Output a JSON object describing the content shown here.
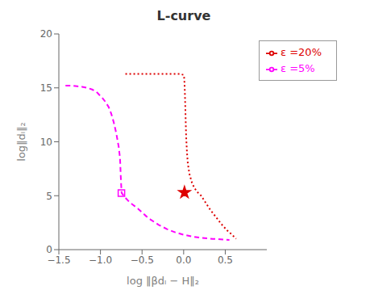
{
  "chart_data": {
    "type": "line",
    "title": "L-curve",
    "x_label": "log ‖βdₗ − H‖₂",
    "y_label": "log‖dₗ‖₂",
    "xlim": [
      -1.5,
      1.0
    ],
    "ylim": [
      0,
      20
    ],
    "xticks": [
      {
        "value": -1.5,
        "label": "−1.5"
      },
      {
        "value": -1.0,
        "label": "−1.0"
      },
      {
        "value": -0.5,
        "label": "−0.5"
      },
      {
        "value": 0.0,
        "label": "0.0"
      },
      0.5
    ],
    "yticks": [
      0,
      5,
      10,
      15,
      20
    ],
    "grid": false,
    "legend": "upper right",
    "series": [
      {
        "name": "ε =5%",
        "color": "#ff00ff",
        "line_style": "dashed",
        "marker": "open_square",
        "x": [
          -1.42,
          -1.38,
          -1.33,
          -1.28,
          -1.22,
          -1.16,
          -1.1,
          -1.05,
          -1.02,
          -0.98,
          -0.94,
          -0.9,
          -0.87,
          -0.84,
          -0.81,
          -0.78,
          -0.765,
          -0.762,
          -0.76,
          -0.758,
          -0.756,
          -0.754,
          -0.752,
          -0.75,
          -0.749,
          -0.748,
          -0.747,
          -0.746,
          -0.745,
          -0.74,
          -0.73,
          -0.72,
          -0.7,
          -0.65,
          -0.6,
          -0.55,
          -0.5,
          -0.45,
          -0.4,
          -0.35,
          -0.3,
          -0.25,
          -0.2,
          -0.1,
          0.0,
          0.1,
          0.2,
          0.35,
          0.55
        ],
        "values": [
          15.2,
          15.2,
          15.2,
          15.15,
          15.1,
          15.0,
          14.85,
          14.65,
          14.4,
          14.1,
          13.7,
          13.2,
          12.6,
          11.8,
          10.8,
          9.5,
          8.5,
          8.0,
          7.6,
          7.2,
          6.8,
          6.5,
          6.2,
          5.9,
          5.7,
          5.5,
          5.4,
          5.3,
          5.25,
          5.2,
          5.1,
          5.0,
          4.8,
          4.4,
          4.1,
          3.8,
          3.45,
          3.1,
          2.8,
          2.55,
          2.3,
          2.1,
          1.9,
          1.6,
          1.38,
          1.22,
          1.1,
          1.0,
          0.9
        ],
        "marker_x": -0.748,
        "marker_y": 5.25
      },
      {
        "name": "ε =20%",
        "color": "#dd0000",
        "line_style": "dotted",
        "marker": "star",
        "x": [
          -0.7,
          -0.65,
          -0.6,
          -0.55,
          -0.5,
          -0.45,
          -0.4,
          -0.35,
          -0.3,
          -0.25,
          -0.2,
          -0.15,
          -0.1,
          -0.05,
          0.0,
          0.005,
          0.01,
          0.015,
          0.02,
          0.025,
          0.03,
          0.04,
          0.05,
          0.07,
          0.1,
          0.13,
          0.17,
          0.21,
          0.26,
          0.32,
          0.38,
          0.45,
          0.52,
          0.58,
          0.63
        ],
        "values": [
          16.3,
          16.3,
          16.3,
          16.3,
          16.3,
          16.3,
          16.3,
          16.3,
          16.3,
          16.3,
          16.3,
          16.3,
          16.3,
          16.3,
          16.2,
          16.0,
          15.5,
          14.5,
          13.2,
          11.8,
          10.5,
          9.0,
          8.0,
          7.0,
          6.2,
          5.7,
          5.3,
          5.0,
          4.4,
          3.7,
          3.1,
          2.4,
          1.8,
          1.4,
          1.0
        ],
        "marker_x": 0.01,
        "marker_y": 5.3
      }
    ]
  }
}
